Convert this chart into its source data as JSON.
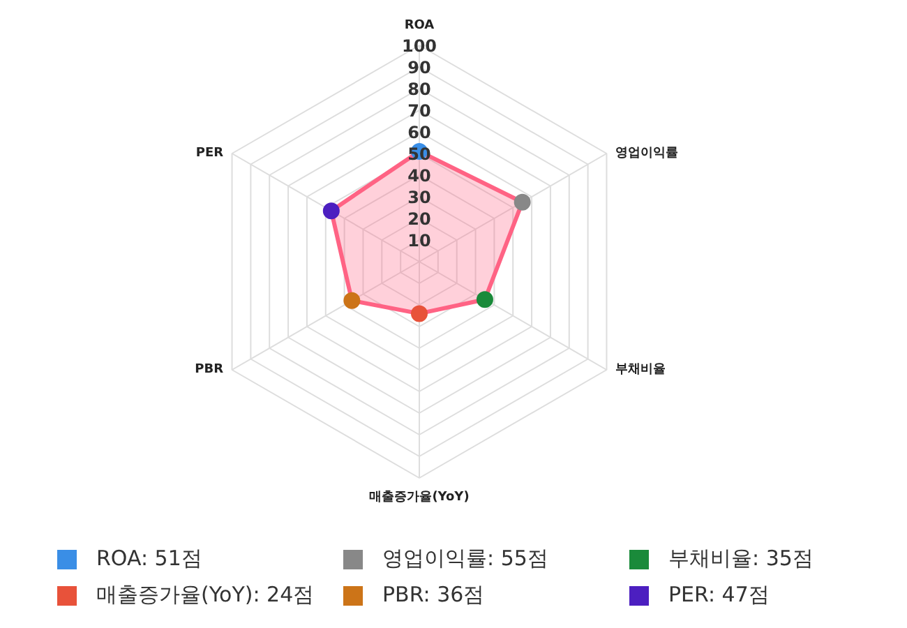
{
  "chart_data": {
    "type": "radar",
    "categories": [
      "ROA",
      "영업이익률",
      "부채비율",
      "매출증가율(YoY)",
      "PBR",
      "PER"
    ],
    "series": [
      {
        "color": "#ff6384",
        "values": [
          51,
          55,
          35,
          24,
          36,
          47
        ]
      }
    ],
    "colors": [
      "#3a8ee6",
      "#888888",
      "#1a8a3a",
      "#e8523a",
      "#cc7418",
      "#4c1fc0"
    ],
    "ylim": [
      0,
      100
    ],
    "yticks": [
      10,
      20,
      30,
      40,
      50,
      60,
      70,
      80,
      90,
      100
    ],
    "grid": true,
    "marker": "circle",
    "annotations": [
      "ROA: 51점",
      "영업이익률: 55점",
      "부채비율: 35점",
      "매출증가율(YoY): 24점",
      "PBR: 36점",
      "PER: 47점"
    ]
  }
}
